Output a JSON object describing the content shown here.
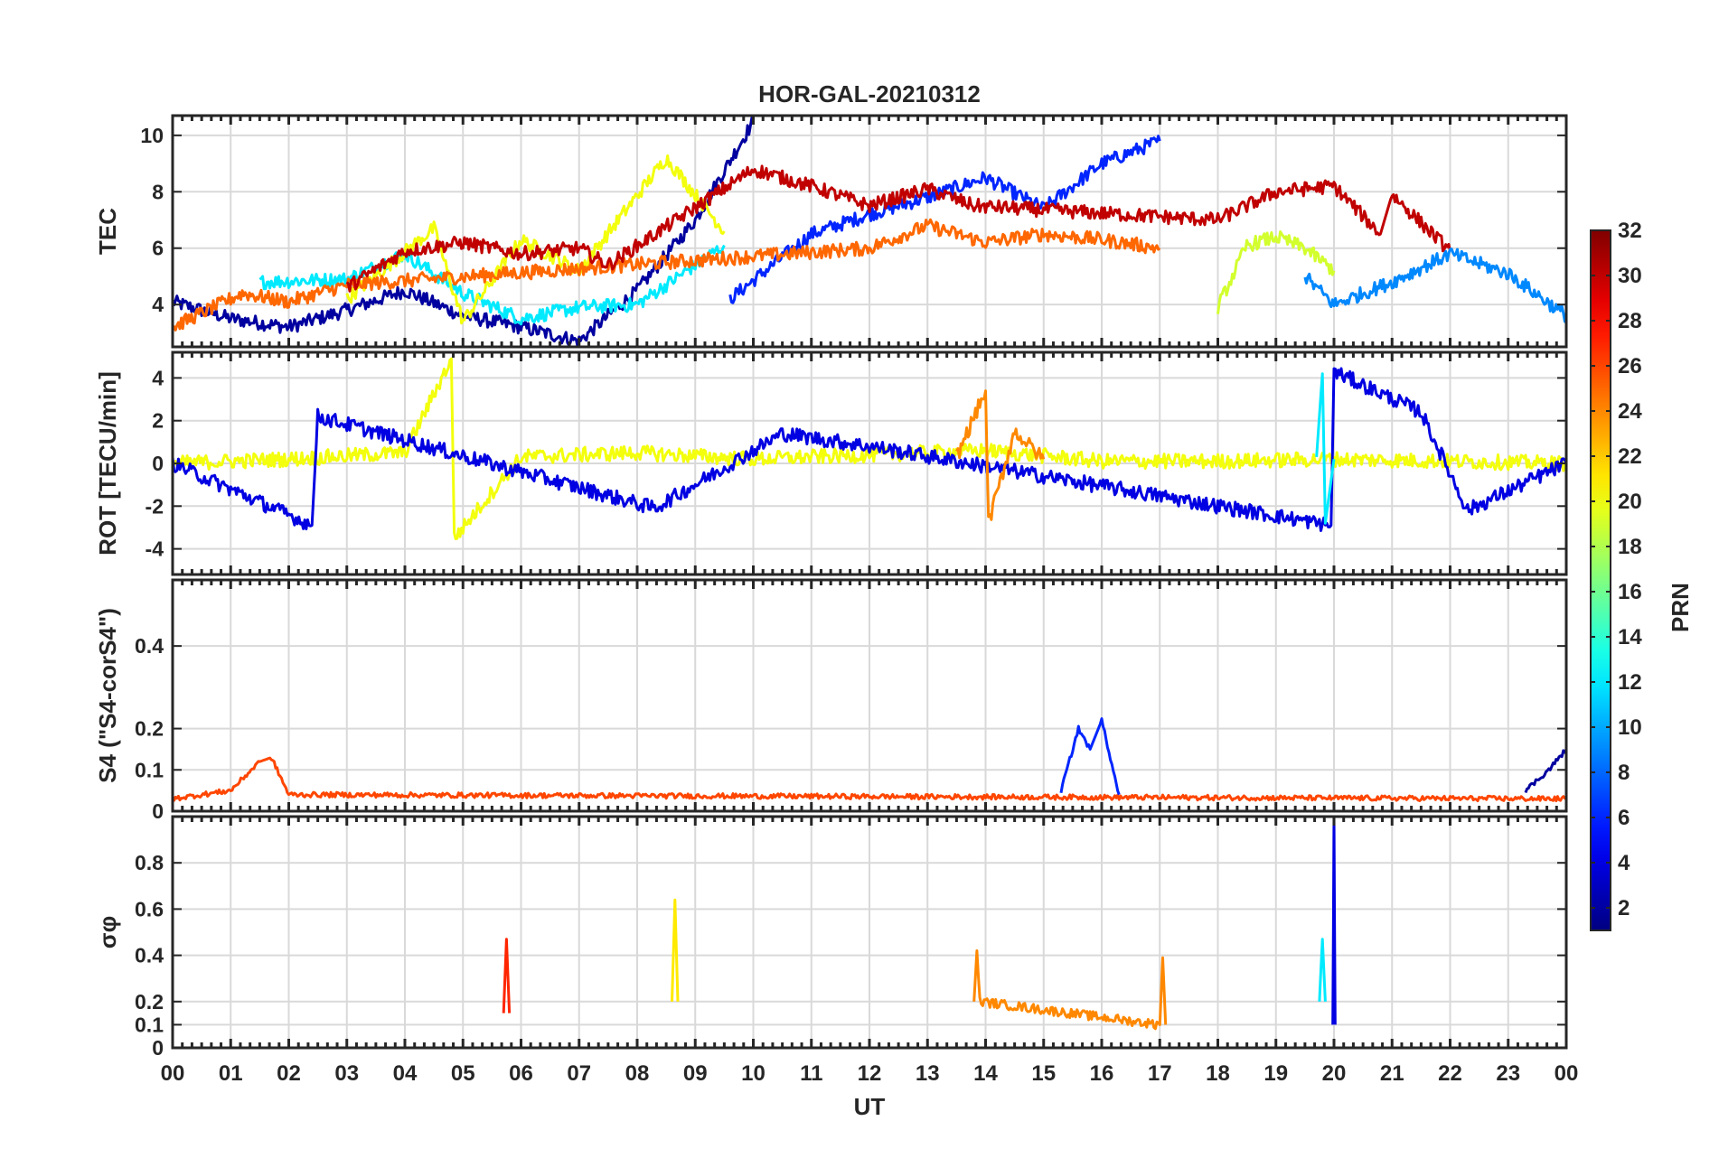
{
  "chart_data": {
    "type": "line",
    "title": "HOR-GAL-20210312",
    "xlabel": "UT",
    "x_ticks": [
      "00",
      "01",
      "02",
      "03",
      "04",
      "05",
      "06",
      "07",
      "08",
      "09",
      "10",
      "11",
      "12",
      "13",
      "14",
      "15",
      "16",
      "17",
      "18",
      "19",
      "20",
      "21",
      "22",
      "23",
      "00"
    ],
    "xlim": [
      0,
      24
    ],
    "grid": true,
    "colorbar": {
      "label": "PRN",
      "range": [
        1,
        32
      ],
      "ticks": [
        "32",
        "30",
        "28",
        "26",
        "24",
        "22",
        "20",
        "18",
        "16",
        "14",
        "12",
        "10",
        "8",
        "6",
        "4",
        "2"
      ],
      "colormap": "jet"
    },
    "panels": [
      {
        "id": "tec",
        "ylabel": "TEC",
        "ylim": [
          2.5,
          10.7
        ],
        "y_ticks": [
          "10",
          "8",
          "6",
          "4"
        ],
        "y_tick_values": [
          10,
          8,
          6,
          4
        ],
        "series_description": "Total electron content per Galileo satellite, ~3-10 TECU, daytime maximum 10-14 UT",
        "approx_series": [
          {
            "prn": 2,
            "x": [
              0.0,
              1.0,
              2.0,
              3.0,
              4.0,
              5.0,
              6.0,
              7.0,
              8.0,
              9.0,
              10.0
            ],
            "y": [
              4.1,
              3.5,
              3.2,
              3.8,
              4.5,
              3.6,
              3.2,
              2.7,
              4.5,
              7.0,
              10.5
            ]
          },
          {
            "prn": 6,
            "x": [
              9.6,
              11.0,
              12.0,
              13.0,
              14.0,
              15.0,
              16.0,
              17.0
            ],
            "y": [
              4.2,
              6.5,
              7.2,
              7.8,
              8.5,
              7.4,
              9.0,
              9.8
            ]
          },
          {
            "prn": 12,
            "x": [
              1.5,
              3.0,
              4.0,
              5.0,
              6.0,
              7.0,
              8.0,
              9.5
            ],
            "y": [
              4.8,
              4.9,
              5.8,
              4.4,
              3.5,
              3.9,
              4.0,
              6.1
            ]
          },
          {
            "prn": 20,
            "x": [
              3.0,
              4.5,
              5.0,
              6.0,
              7.0,
              8.5,
              9.5
            ],
            "y": [
              4.2,
              6.7,
              3.4,
              6.3,
              5.2,
              9.2,
              6.6
            ]
          },
          {
            "prn": 25,
            "x": [
              0.0,
              1.2,
              2.0,
              3.0,
              12.0,
              13.0,
              14.0,
              15.0,
              16.0,
              17.0
            ],
            "y": [
              3.2,
              4.4,
              4.1,
              4.7,
              6.0,
              6.8,
              6.2,
              6.5,
              6.3,
              6.0
            ]
          },
          {
            "prn": 30,
            "x": [
              3.0,
              4.0,
              5.0,
              6.0,
              7.0,
              7.5,
              10.0,
              11.0,
              12.0,
              13.0,
              13.8,
              18.0,
              19.0,
              20.0,
              20.8,
              21.0,
              22.0
            ],
            "y": [
              4.6,
              5.9,
              6.2,
              5.8,
              6.0,
              5.4,
              8.8,
              8.2,
              7.5,
              8.1,
              7.5,
              7.0,
              8.0,
              8.2,
              6.5,
              7.9,
              5.9
            ]
          },
          {
            "prn": 19,
            "x": [
              18.0,
              18.5,
              19.0,
              19.5,
              20.0
            ],
            "y": [
              3.9,
              6.1,
              6.4,
              6.0,
              5.2
            ]
          },
          {
            "prn": 9,
            "x": [
              19.5,
              20.0,
              21.0,
              22.0,
              23.0,
              24.0
            ],
            "y": [
              5.0,
              4.0,
              4.8,
              5.8,
              5.1,
              3.6
            ]
          }
        ]
      },
      {
        "id": "rot",
        "ylabel": "ROT [TECU/min]",
        "ylim": [
          -5.2,
          5.2
        ],
        "y_ticks": [
          "4",
          "2",
          "0",
          "-2",
          "-4"
        ],
        "y_tick_values": [
          4,
          2,
          0,
          -2,
          -4
        ],
        "series_description": "Rate of TEC change, mostly within +/-1 TECU/min, spikes to +4.9 near 04:48, -3.5 near 04:48, +3.4 near 14:00, +4.3 near 19:50-20:00",
        "approx_series": [
          {
            "prn": 20,
            "x": [
              0,
              2,
              4,
              4.8,
              4.85,
              6,
              8,
              10,
              12,
              14,
              16,
              18,
              20,
              22,
              24
            ],
            "y": [
              0,
              0.2,
              0.5,
              4.9,
              -3.5,
              0.3,
              0.5,
              0.2,
              0.4,
              0.6,
              0.1,
              0.1,
              0.2,
              0.1,
              0
            ]
          },
          {
            "prn": 4,
            "x": [
              0,
              2.4,
              2.5,
              8.3,
              10.5,
              12,
              19.95,
              20.0,
              21.5,
              22.3,
              24
            ],
            "y": [
              0,
              -2.9,
              2.2,
              -2.1,
              1.4,
              0.8,
              -2.9,
              4.3,
              2.4,
              -2.2,
              0
            ]
          },
          {
            "prn": 24,
            "x": [
              13.5,
              14.0,
              14.05,
              14.5,
              15.0
            ],
            "y": [
              0.3,
              3.4,
              -2.8,
              1.5,
              0.2
            ]
          },
          {
            "prn": 12,
            "x": [
              19.7,
              19.8,
              19.85,
              20.0
            ],
            "y": [
              0.3,
              4.2,
              -2.8,
              0.2
            ]
          }
        ]
      },
      {
        "id": "s4",
        "ylabel": "S4 (\"S4-corS4\")",
        "ylim": [
          0,
          0.56
        ],
        "y_ticks": [
          "0.4",
          "0.2",
          "0.1",
          "0"
        ],
        "y_tick_values": [
          0.4,
          0.2,
          0.1,
          0.0
        ],
        "series_description": "Amplitude scintillation index, background ~0.03-0.05, enhancement to ~0.22 near 15:40-16:00, ~0.13 near 01:40",
        "approx_series": [
          {
            "prn": 26,
            "x": [
              0,
              1.0,
              1.5,
              1.7,
              2.0,
              24
            ],
            "y": [
              0.03,
              0.05,
              0.12,
              0.13,
              0.04,
              0.03
            ]
          },
          {
            "prn": 6,
            "x": [
              15.3,
              15.6,
              15.8,
              16.0,
              16.3
            ],
            "y": [
              0.05,
              0.2,
              0.15,
              0.22,
              0.04
            ]
          },
          {
            "prn": 2,
            "x": [
              23.3,
              23.7,
              24.0
            ],
            "y": [
              0.05,
              0.1,
              0.15
            ]
          }
        ]
      },
      {
        "id": "sigma_phi",
        "ylabel": "σφ",
        "ylim": [
          0,
          1.0
        ],
        "y_ticks": [
          "0.8",
          "0.6",
          "0.4",
          "0.2",
          "0.1",
          "0"
        ],
        "y_tick_values": [
          0.8,
          0.6,
          0.4,
          0.2,
          0.1,
          0.0
        ],
        "series_description": "Phase scintillation index, background ~0.1-0.15, spikes: 0.47 near 05:45, 0.64 near 08:40, 0.42 near 13:50, 0.39 near 17:00, 0.47 near 19:50, 1.0 at 20:00",
        "approx_series": [
          {
            "prn": 27,
            "x": [
              5.7,
              5.75,
              5.8
            ],
            "y": [
              0.15,
              0.47,
              0.15
            ]
          },
          {
            "prn": 21,
            "x": [
              8.6,
              8.65,
              8.7
            ],
            "y": [
              0.2,
              0.64,
              0.2
            ]
          },
          {
            "prn": 24,
            "x": [
              13.8,
              13.85,
              13.9,
              17.0,
              17.05,
              17.1
            ],
            "y": [
              0.2,
              0.42,
              0.2,
              0.1,
              0.39,
              0.1
            ]
          },
          {
            "prn": 12,
            "x": [
              19.75,
              19.8,
              19.85
            ],
            "y": [
              0.2,
              0.47,
              0.2
            ]
          },
          {
            "prn": 4,
            "x": [
              19.98,
              20.0,
              20.02
            ],
            "y": [
              0.1,
              1.0,
              0.1
            ]
          }
        ]
      }
    ]
  }
}
